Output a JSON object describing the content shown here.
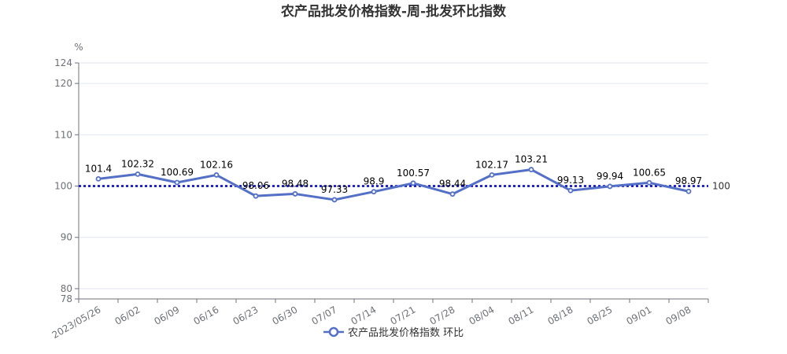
{
  "chart_data": {
    "type": "line",
    "title": "农产品批发价格指数-周-批发环比指数",
    "ylabel": "%",
    "ylim": [
      78,
      124
    ],
    "yticks": [
      78,
      80,
      90,
      100,
      110,
      120,
      124
    ],
    "categories": [
      "2023/05/26",
      "06/02",
      "06/09",
      "06/16",
      "06/23",
      "06/30",
      "07/07",
      "07/14",
      "07/21",
      "07/28",
      "08/04",
      "08/11",
      "08/18",
      "08/25",
      "09/01",
      "09/08"
    ],
    "series": [
      {
        "name": "农产品批发价格指数 环比",
        "values": [
          101.4,
          102.32,
          100.69,
          102.16,
          98.06,
          98.48,
          97.33,
          98.9,
          100.57,
          98.44,
          102.17,
          103.21,
          99.13,
          99.94,
          100.65,
          98.97
        ],
        "color": "#5470c6"
      }
    ],
    "reference_line": {
      "value": 100,
      "label": "100",
      "color": "#0000cc"
    },
    "grid": true,
    "legend": "bottom"
  }
}
